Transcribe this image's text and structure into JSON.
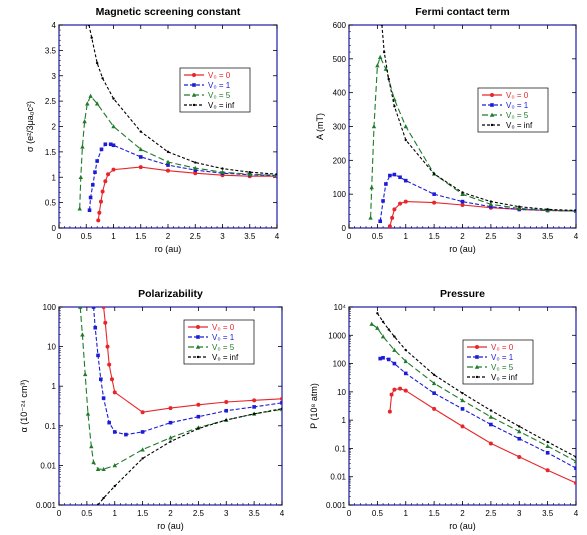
{
  "colors": {
    "Vo_0": "#e8262a",
    "Vo_1": "#1c1cd8",
    "Vo_5": "#1f7a2a",
    "Vo_inf": "#000000",
    "frame": "#1a1aa6"
  },
  "chart_data": [
    {
      "type": "line",
      "title": "Magnetic screening constant",
      "xlabel": "r_o (au)",
      "ylabel": "σ (e²/3μa₀c²)",
      "xlim": [
        0,
        4
      ],
      "ylim": [
        0,
        4
      ],
      "yscale": "linear",
      "xticks": [
        "0",
        "0.5",
        "1",
        "1.5",
        "2",
        "2.5",
        "3",
        "3.5",
        "4"
      ],
      "yticks": [
        "0",
        "0.5",
        "1",
        "1.5",
        "2",
        "2.5",
        "3",
        "3.5",
        "4"
      ],
      "legend": "top-right",
      "series": [
        {
          "name": "V₀ = 0",
          "color_key": "Vo_0",
          "dash": "",
          "marker": "circle",
          "x": [
            0.72,
            0.74,
            0.77,
            0.8,
            0.85,
            0.9,
            1.0,
            1.5,
            2.0,
            2.5,
            3.0,
            3.5,
            4.0
          ],
          "y": [
            0.15,
            0.3,
            0.52,
            0.72,
            0.92,
            1.06,
            1.15,
            1.2,
            1.13,
            1.08,
            1.04,
            1.02,
            1.02
          ]
        },
        {
          "name": "V₀ = 1",
          "color_key": "Vo_1",
          "dash": "4,2",
          "marker": "square",
          "x": [
            0.56,
            0.58,
            0.62,
            0.66,
            0.7,
            0.78,
            0.85,
            0.95,
            1.0,
            1.5,
            2.0,
            2.5,
            3.0,
            3.5,
            4.0
          ],
          "y": [
            0.35,
            0.6,
            0.85,
            1.1,
            1.32,
            1.55,
            1.65,
            1.65,
            1.63,
            1.4,
            1.24,
            1.14,
            1.08,
            1.05,
            1.03
          ]
        },
        {
          "name": "V₀ = 5",
          "color_key": "Vo_5",
          "dash": "6,3",
          "marker": "triangle",
          "x": [
            0.38,
            0.4,
            0.43,
            0.47,
            0.52,
            0.58,
            0.7,
            1.0,
            1.5,
            2.0,
            2.5,
            3.0,
            3.5,
            4.0
          ],
          "y": [
            0.38,
            1.0,
            1.6,
            2.1,
            2.45,
            2.6,
            2.45,
            2.0,
            1.55,
            1.3,
            1.18,
            1.1,
            1.06,
            1.04
          ]
        },
        {
          "name": "V₀ = inf",
          "color_key": "Vo_inf",
          "dash": "3,2",
          "marker": "dot",
          "x": [
            0.55,
            0.6,
            0.7,
            0.8,
            1.0,
            1.5,
            2.0,
            2.5,
            3.0,
            3.5,
            4.0
          ],
          "y": [
            4.0,
            3.75,
            3.25,
            2.95,
            2.55,
            1.9,
            1.5,
            1.29,
            1.17,
            1.1,
            1.06
          ]
        }
      ]
    },
    {
      "type": "line",
      "title": "Fermi contact term",
      "xlabel": "r_o (au)",
      "ylabel": "A (mT)",
      "xlim": [
        0,
        4
      ],
      "ylim": [
        0,
        600
      ],
      "yscale": "linear",
      "xticks": [
        "0",
        "0.5",
        "1",
        "1.5",
        "2",
        "2.5",
        "3",
        "3.5",
        "4"
      ],
      "yticks": [
        "0",
        "100",
        "200",
        "300",
        "400",
        "500",
        "600"
      ],
      "legend": "top-right",
      "series": [
        {
          "name": "V₀ = 0",
          "color_key": "Vo_0",
          "dash": "",
          "marker": "circle",
          "x": [
            0.72,
            0.76,
            0.8,
            0.9,
            1.0,
            1.5,
            2.0,
            2.5,
            3.0,
            3.5,
            4.0
          ],
          "y": [
            5,
            30,
            55,
            72,
            78,
            75,
            68,
            60,
            55,
            52,
            50
          ]
        },
        {
          "name": "V₀ = 1",
          "color_key": "Vo_1",
          "dash": "4,2",
          "marker": "square",
          "x": [
            0.55,
            0.6,
            0.65,
            0.72,
            0.8,
            0.9,
            1.0,
            1.5,
            2.0,
            2.5,
            3.0,
            3.5,
            4.0
          ],
          "y": [
            20,
            80,
            130,
            155,
            158,
            150,
            140,
            100,
            78,
            63,
            55,
            52,
            50
          ]
        },
        {
          "name": "V₀ = 5",
          "color_key": "Vo_5",
          "dash": "6,3",
          "marker": "triangle",
          "x": [
            0.38,
            0.4,
            0.44,
            0.5,
            0.55,
            0.65,
            0.8,
            1.0,
            1.5,
            2.0,
            2.5,
            3.0,
            3.5,
            4.0
          ],
          "y": [
            30,
            120,
            300,
            480,
            505,
            470,
            380,
            300,
            160,
            100,
            70,
            58,
            53,
            50
          ]
        },
        {
          "name": "V₀ = inf",
          "color_key": "Vo_inf",
          "dash": "3,2",
          "marker": "dot",
          "x": [
            0.58,
            0.62,
            0.7,
            0.8,
            1.0,
            1.5,
            2.0,
            2.5,
            3.0,
            3.5,
            4.0
          ],
          "y": [
            600,
            520,
            440,
            360,
            260,
            160,
            105,
            78,
            63,
            55,
            52
          ]
        }
      ]
    },
    {
      "type": "line",
      "title": "Polarizability",
      "xlabel": "r_o (au)",
      "ylabel": "α (10⁻²⁴ cm³)",
      "xlim": [
        0,
        4
      ],
      "ylim": [
        0.001,
        100
      ],
      "yscale": "log",
      "xticks": [
        "0",
        "0.5",
        "1",
        "1.5",
        "2",
        "2.5",
        "3",
        "3.5",
        "4"
      ],
      "yticks": [
        "0.001",
        "0.01",
        "0.1",
        "1",
        "10",
        "100"
      ],
      "legend": "top-right",
      "series": [
        {
          "name": "V₀ = 0",
          "color_key": "Vo_0",
          "dash": "",
          "marker": "circle",
          "x": [
            0.8,
            0.83,
            0.87,
            0.9,
            0.95,
            1.0,
            1.5,
            2.0,
            2.5,
            3.0,
            3.5,
            4.0
          ],
          "y": [
            100,
            40,
            10,
            3.5,
            1.5,
            0.7,
            0.22,
            0.28,
            0.34,
            0.4,
            0.44,
            0.48
          ]
        },
        {
          "name": "V₀ = 1",
          "color_key": "Vo_1",
          "dash": "4,2",
          "marker": "square",
          "x": [
            0.62,
            0.65,
            0.7,
            0.75,
            0.8,
            0.9,
            1.0,
            1.2,
            1.5,
            2.0,
            2.5,
            3.0,
            3.5,
            4.0
          ],
          "y": [
            100,
            30,
            6,
            1.5,
            0.5,
            0.12,
            0.07,
            0.06,
            0.07,
            0.12,
            0.17,
            0.24,
            0.3,
            0.38
          ]
        },
        {
          "name": "V₀ = 5",
          "color_key": "Vo_5",
          "dash": "6,3",
          "marker": "triangle",
          "x": [
            0.38,
            0.42,
            0.47,
            0.52,
            0.58,
            0.62,
            0.7,
            0.8,
            1.0,
            1.5,
            2.0,
            2.5,
            3.0,
            3.5,
            4.0
          ],
          "y": [
            100,
            20,
            2,
            0.2,
            0.03,
            0.012,
            0.008,
            0.008,
            0.01,
            0.025,
            0.05,
            0.09,
            0.14,
            0.2,
            0.26
          ]
        },
        {
          "name": "V₀ = inf",
          "color_key": "Vo_inf",
          "dash": "3,2",
          "marker": "dot",
          "x": [
            0.7,
            0.8,
            1.0,
            1.5,
            2.0,
            2.5,
            3.0,
            3.5,
            4.0
          ],
          "y": [
            0.001,
            0.0015,
            0.003,
            0.015,
            0.04,
            0.085,
            0.14,
            0.2,
            0.27
          ]
        }
      ]
    },
    {
      "type": "line",
      "title": "Pressure",
      "xlabel": "r_o (au)",
      "ylabel": "P (10⁸ atm)",
      "xlim": [
        0,
        4
      ],
      "ylim": [
        0.001,
        10000
      ],
      "yscale": "log",
      "xticks": [
        "0",
        "0.5",
        "1",
        "1.5",
        "2",
        "2.5",
        "3",
        "3.5",
        "4"
      ],
      "yticks": [
        "0.001",
        "0.01",
        "0.1",
        "1",
        "10",
        "100",
        "1000",
        "10⁴"
      ],
      "legend": "top-right",
      "series": [
        {
          "name": "V₀ = 0",
          "color_key": "Vo_0",
          "dash": "",
          "marker": "circle",
          "x": [
            0.72,
            0.75,
            0.8,
            0.9,
            1.0,
            1.5,
            2.0,
            2.5,
            3.0,
            3.5,
            4.0
          ],
          "y": [
            2,
            8,
            12,
            13,
            11,
            2.5,
            0.6,
            0.15,
            0.05,
            0.017,
            0.006
          ]
        },
        {
          "name": "V₀ = 1",
          "color_key": "Vo_1",
          "dash": "4,2",
          "marker": "square",
          "x": [
            0.55,
            0.6,
            0.7,
            0.8,
            1.0,
            1.5,
            2.0,
            2.5,
            3.0,
            3.5,
            4.0
          ],
          "y": [
            150,
            160,
            140,
            100,
            45,
            9,
            2.5,
            0.7,
            0.22,
            0.07,
            0.02
          ]
        },
        {
          "name": "V₀ = 5",
          "color_key": "Vo_5",
          "dash": "6,3",
          "marker": "triangle",
          "x": [
            0.4,
            0.5,
            0.6,
            0.8,
            1.0,
            1.5,
            2.0,
            2.5,
            3.0,
            3.5,
            4.0
          ],
          "y": [
            2500,
            1800,
            900,
            300,
            120,
            20,
            5,
            1.3,
            0.4,
            0.12,
            0.035
          ]
        },
        {
          "name": "V₀ = inf",
          "color_key": "Vo_inf",
          "dash": "3,2",
          "marker": "dot",
          "x": [
            0.5,
            0.6,
            0.7,
            0.8,
            1.0,
            1.5,
            2.0,
            2.5,
            3.0,
            3.5,
            4.0
          ],
          "y": [
            6000,
            3000,
            1600,
            900,
            300,
            40,
            9,
            2.2,
            0.6,
            0.17,
            0.05
          ]
        }
      ]
    }
  ]
}
